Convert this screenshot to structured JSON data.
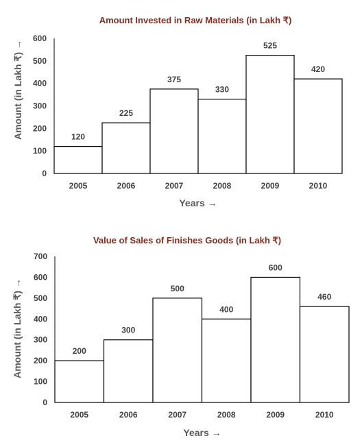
{
  "chart_data": [
    {
      "type": "bar",
      "title": "Amount Invested in Raw Materials (in Lakh ₹)",
      "xlabel": "Years →",
      "ylabel": "Amount (in Lakh ₹) →",
      "categories": [
        "2005",
        "2006",
        "2007",
        "2008",
        "2009",
        "2010"
      ],
      "values": [
        120,
        225,
        375,
        330,
        525,
        420
      ],
      "ylim": [
        0,
        600
      ],
      "yticks": [
        0,
        100,
        200,
        300,
        400,
        500,
        600
      ],
      "grid": false,
      "legend": "none",
      "bar_fill": "#ffffff",
      "bar_stroke": "#000000",
      "title_color": "#8b2b1e"
    },
    {
      "type": "bar",
      "title": "Value of Sales of Finishes Goods (in Lakh ₹)",
      "xlabel": "Years →",
      "ylabel": "Amount (in Lakh ₹) →",
      "categories": [
        "2005",
        "2006",
        "2007",
        "2008",
        "2009",
        "2010"
      ],
      "values": [
        200,
        300,
        500,
        400,
        600,
        460
      ],
      "ylim": [
        0,
        700
      ],
      "yticks": [
        0,
        100,
        200,
        300,
        400,
        500,
        600,
        700
      ],
      "grid": false,
      "legend": "none",
      "bar_fill": "#ffffff",
      "bar_stroke": "#000000",
      "title_color": "#8b2b1e"
    }
  ]
}
